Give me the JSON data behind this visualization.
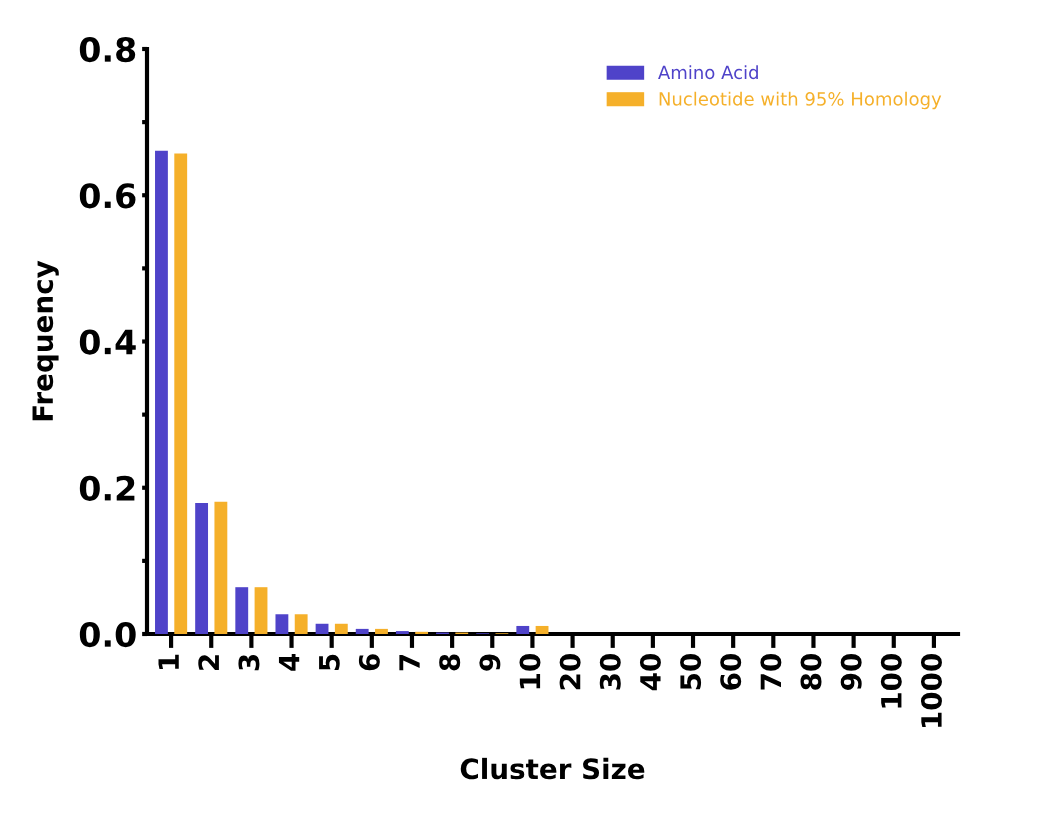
{
  "chart_data": {
    "type": "bar",
    "xlabel": "Cluster Size",
    "ylabel": "Frequency",
    "categories": [
      "1",
      "2",
      "3",
      "4",
      "5",
      "6",
      "7",
      "8",
      "9",
      "10",
      "20",
      "30",
      "40",
      "50",
      "60",
      "70",
      "80",
      "90",
      "100",
      "1000"
    ],
    "series": [
      {
        "name": "Amino Acid",
        "color": "#4f43c9",
        "values": [
          0.661,
          0.179,
          0.064,
          0.027,
          0.014,
          0.007,
          0.004,
          0.002,
          0.001,
          0.011,
          0,
          0,
          0,
          0,
          0,
          0,
          0,
          0,
          0,
          0
        ]
      },
      {
        "name": "Nucleotide with 95% Homology",
        "color": "#f5b02a",
        "values": [
          0.657,
          0.181,
          0.064,
          0.027,
          0.014,
          0.007,
          0.003,
          0.002,
          0.001,
          0.011,
          0,
          0,
          0,
          0,
          0,
          0,
          0,
          0,
          0,
          0
        ]
      }
    ],
    "ylim": [
      0,
      0.8
    ],
    "yticks": [
      {
        "value": 0,
        "label": "0.0"
      },
      {
        "value": 0.1,
        "label": null
      },
      {
        "value": 0.2,
        "label": "0.2"
      },
      {
        "value": 0.3,
        "label": null
      },
      {
        "value": 0.4,
        "label": "0.4"
      },
      {
        "value": 0.5,
        "label": null
      },
      {
        "value": 0.6,
        "label": "0.6"
      },
      {
        "value": 0.7,
        "label": null
      },
      {
        "value": 0.8,
        "label": "0.8"
      }
    ],
    "legend": "top right",
    "grid": false
  }
}
